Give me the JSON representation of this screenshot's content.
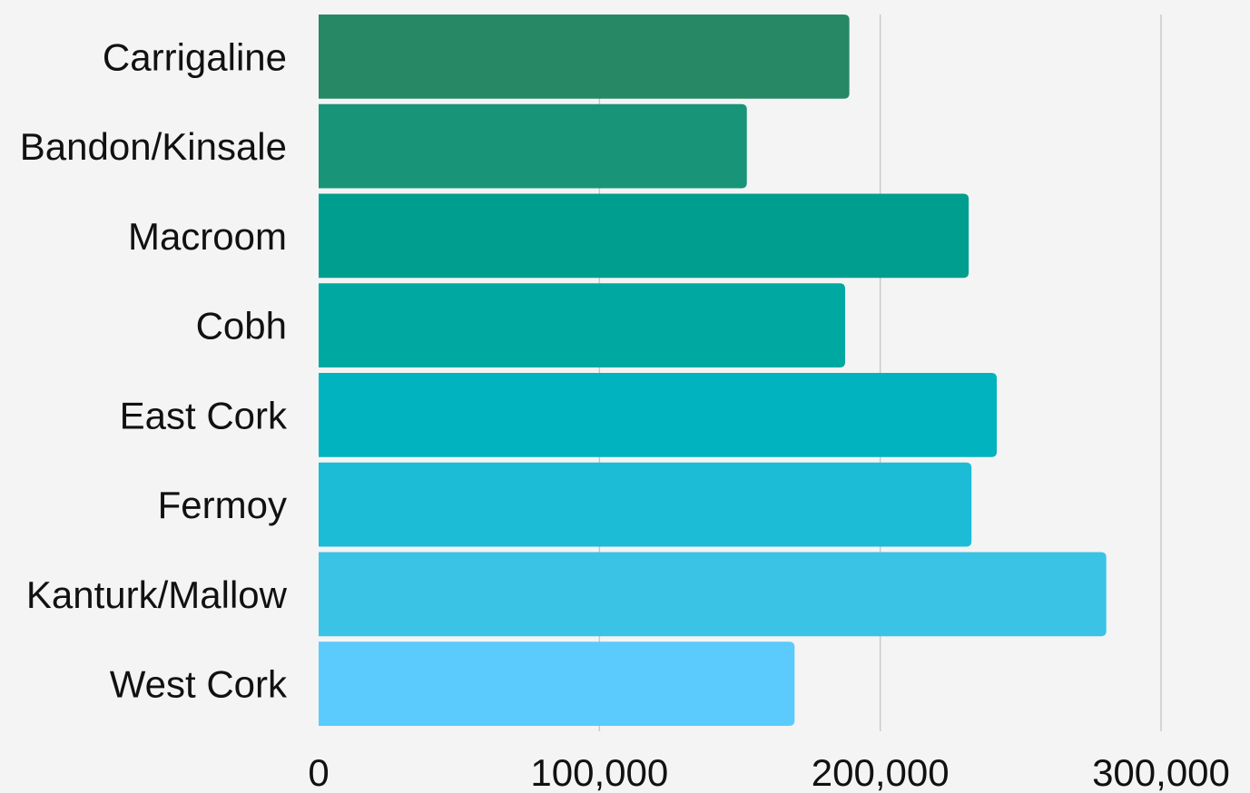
{
  "chart_data": {
    "type": "bar",
    "orientation": "horizontal",
    "title": "",
    "xlabel": "",
    "ylabel": "",
    "categories": [
      "Carrigaline",
      "Bandon/Kinsale",
      "Macroom",
      "Cobh",
      "East Cork",
      "Fermoy",
      "Kanturk/Mallow",
      "West Cork"
    ],
    "values": [
      189000,
      152500,
      231500,
      187500,
      241500,
      232500,
      280500,
      169500
    ],
    "xlim": [
      0,
      300000
    ],
    "x_ticks": [
      0,
      100000,
      200000,
      300000
    ],
    "x_tick_labels": [
      "0",
      "100,000",
      "200,000",
      "300,000"
    ],
    "grid": "vertical",
    "legend": "none",
    "bar_colors": [
      "#268864",
      "#189479",
      "#009e8e",
      "#00a8a2",
      "#00b3bf",
      "#1cbcd7",
      "#3bc3e6",
      "#5bcbfd"
    ],
    "background_color": "#f4f4f4"
  }
}
